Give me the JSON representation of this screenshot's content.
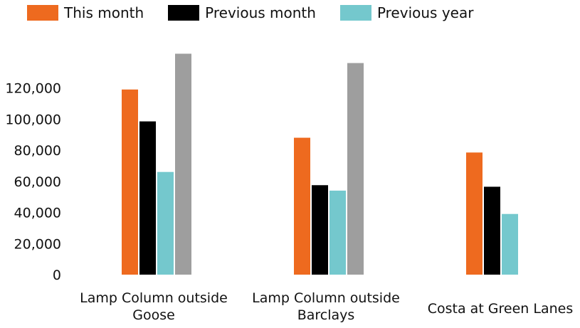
{
  "chart_data": {
    "type": "bar",
    "title": "",
    "xlabel": "",
    "ylabel": "",
    "ylim": [
      0,
      150000
    ],
    "yticks": [
      0,
      20000,
      40000,
      60000,
      80000,
      100000,
      120000
    ],
    "ytick_labels": [
      "0",
      "20,000",
      "40,000",
      "60,000",
      "80,000",
      "100,000",
      "120,000"
    ],
    "categories": [
      [
        "Lamp Column outside",
        "Goose"
      ],
      [
        "Lamp Column outside",
        "Barclays"
      ],
      [
        "Costa at Green Lanes"
      ]
    ],
    "legend_position": "top",
    "grid": false,
    "series": [
      {
        "name": "This month",
        "color": "#ee6a1f",
        "values": [
          119000,
          88000,
          78500
        ]
      },
      {
        "name": "Previous month",
        "color": "#000000",
        "values": [
          98500,
          57500,
          56500
        ]
      },
      {
        "name": "Previous year",
        "color": "#74c8cd",
        "values": [
          66000,
          54000,
          39000
        ]
      },
      {
        "name": "",
        "color": "#9e9e9e",
        "values": [
          142000,
          136000,
          null
        ]
      }
    ]
  }
}
